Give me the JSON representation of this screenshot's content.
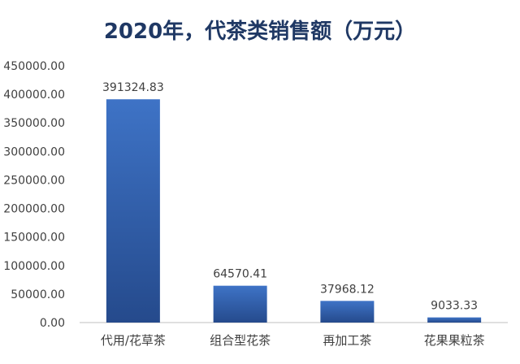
{
  "chart_data": {
    "type": "bar",
    "title": "2020年，代茶类销售额（万元）",
    "categories": [
      "代用/花草茶",
      "组合型花茶",
      "再加工茶",
      "花果果粒茶"
    ],
    "values": [
      391324.83,
      64570.41,
      37968.12,
      9033.33
    ],
    "value_labels": [
      "391324.83",
      "64570.41",
      "37968.12",
      "9033.33"
    ],
    "yticks": [
      "0.00",
      "50000.00",
      "100000.00",
      "150000.00",
      "200000.00",
      "250000.00",
      "300000.00",
      "350000.00",
      "400000.00",
      "450000.00"
    ],
    "ylim": [
      0,
      450000
    ],
    "xlabel": "",
    "ylabel": "",
    "grid": false,
    "legend": "none",
    "colors": {
      "bar_top": "#3e73c6",
      "bar_bottom": "#254a8c",
      "title": "#1f3864",
      "text": "#404040",
      "axis": "#bfbfbf"
    }
  }
}
